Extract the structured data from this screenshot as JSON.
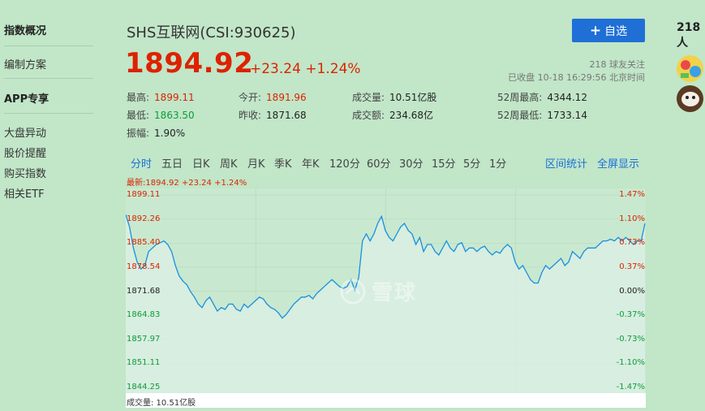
{
  "sidebar": {
    "section1": "指数概况",
    "item_bianzhi": "编制方案",
    "section2": "APP专享",
    "items": [
      "大盘异动",
      "股价提醒",
      "购买指数",
      "相关ETF"
    ]
  },
  "header": {
    "title": "SHS互联网(CSI:930625)",
    "price": "1894.92",
    "change": "+23.24 +1.24%",
    "follow_button": "自选",
    "followers": "218 球友关注",
    "status": "已收盘 10-18 16:29:56 北京时间"
  },
  "quote": {
    "high_label": "最高:",
    "high": "1899.11",
    "low_label": "最低:",
    "low": "1863.50",
    "amp_label": "振幅:",
    "amp": "1.90%",
    "open_label": "今开:",
    "open": "1891.96",
    "prev_label": "昨收:",
    "prev": "1871.68",
    "vol_label": "成交量:",
    "vol": "10.51亿股",
    "amt_label": "成交额:",
    "amt": "234.68亿",
    "w52h_label": "52周最高:",
    "w52h": "4344.12",
    "w52l_label": "52周最低:",
    "w52l": "1733.14"
  },
  "tabs": [
    "分时",
    "五日",
    "日K",
    "周K",
    "月K",
    "季K",
    "年K",
    "120分",
    "60分",
    "30分",
    "15分",
    "5分",
    "1分"
  ],
  "active_tab": "分时",
  "chart_links": {
    "interval": "区间统计",
    "fullscreen": "全屏显示"
  },
  "chart": {
    "latest": "最新:1894.92 +23.24 +1.24%",
    "volume": "成交量: 10.51亿股",
    "watermark": "雪球",
    "left_labels": [
      "1899.11",
      "1892.26",
      "1885.40",
      "1878.54",
      "1871.68",
      "1864.83",
      "1857.97",
      "1851.11",
      "1844.25"
    ],
    "right_labels": [
      "1.47%",
      "1.10%",
      "0.73%",
      "0.37%",
      "0.00%",
      "-0.37%",
      "-0.73%",
      "-1.10%",
      "-1.47%"
    ]
  },
  "chart_data": {
    "type": "line",
    "prev_close": 1871.68,
    "ylim": [
      1844.25,
      1899.11
    ],
    "series": [
      {
        "values": [
          1893.5,
          1890,
          1884,
          1880,
          1878,
          1879,
          1883,
          1884,
          1885,
          1885.5,
          1886,
          1885,
          1883,
          1879,
          1876,
          1874.5,
          1873.5,
          1871.5,
          1870,
          1868,
          1867,
          1869,
          1870,
          1868,
          1866,
          1867,
          1866.5,
          1868,
          1868,
          1866.5,
          1866,
          1868,
          1867,
          1868,
          1869,
          1870,
          1869.5,
          1868,
          1867,
          1866.5,
          1865.5,
          1864,
          1865,
          1866.5,
          1868,
          1869,
          1870,
          1870,
          1870.5,
          1869.5,
          1871,
          1872,
          1873,
          1874,
          1875,
          1874,
          1873,
          1872.5,
          1873,
          1875,
          1872,
          1875.5,
          1886,
          1888,
          1886,
          1888,
          1891,
          1893,
          1889,
          1887,
          1886,
          1888,
          1890,
          1891,
          1889,
          1888,
          1885,
          1887,
          1883,
          1885,
          1885,
          1883,
          1882,
          1884,
          1886,
          1884,
          1883,
          1885,
          1885.5,
          1883,
          1884,
          1884,
          1883,
          1884,
          1884.5,
          1883,
          1882,
          1883,
          1882.5,
          1884,
          1885,
          1884,
          1880,
          1878,
          1879,
          1877,
          1875,
          1874,
          1874,
          1877,
          1879,
          1878,
          1879,
          1880,
          1881,
          1879,
          1880,
          1883,
          1882,
          1881,
          1883,
          1884,
          1884,
          1884,
          1885,
          1886,
          1886,
          1886.5,
          1886,
          1887,
          1886,
          1887,
          1886,
          1885,
          1886,
          1886,
          1891
        ]
      }
    ]
  }
}
